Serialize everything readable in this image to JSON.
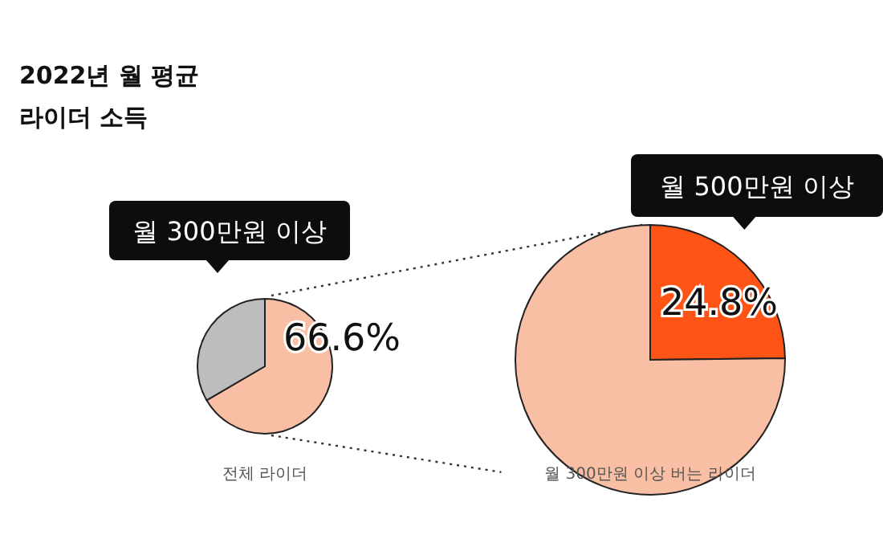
{
  "chart_data": [
    {
      "type": "pie",
      "title": "2022년 월 평균",
      "subtitle": "라이더 소득",
      "categories": [
        null,
        null
      ],
      "values": [
        66.6,
        33.4
      ],
      "colors": [
        "#f9bfa4",
        "#bdbdbd"
      ],
      "value_labels": [
        "66.6%",
        null
      ],
      "annotations": [
        "월 300만원 이상"
      ],
      "xlabel": "전체 라이더"
    },
    {
      "type": "pie",
      "categories": [
        null,
        null
      ],
      "values": [
        24.8,
        75.2
      ],
      "colors": [
        "#fe5516",
        "#f9bfa4"
      ],
      "value_labels": [
        "24.8%",
        null
      ],
      "annotations": [
        "월 500만원 이상"
      ],
      "xlabel": "월 300만원 이상 버는 라이더"
    }
  ]
}
